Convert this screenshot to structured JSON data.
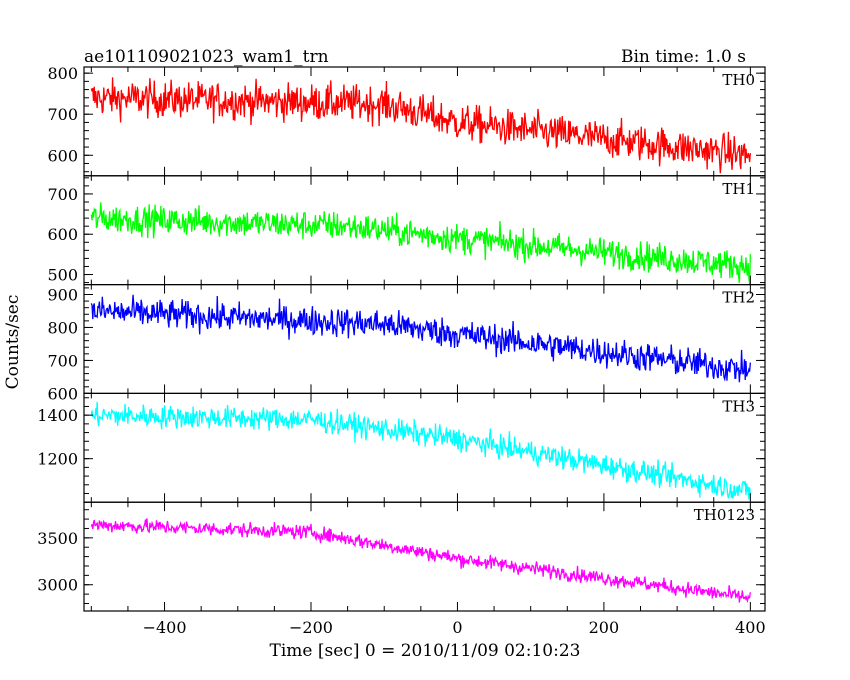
{
  "chart_data": {
    "type": "line",
    "title_left": "ae101109021023_wam1_trn",
    "title_right": "Bin time: 1.0 s",
    "xlabel": "Time [sec] 0 = 2010/11/09 02:10:23",
    "ylabel": "Counts/sec",
    "xlim": [
      -510,
      420
    ],
    "xticks": [
      -400,
      -200,
      0,
      200,
      400
    ],
    "panels": [
      {
        "name": "TH0",
        "color": "#ff0000",
        "ylim": [
          550,
          815
        ],
        "yticks": [
          600,
          700,
          800
        ],
        "trend": {
          "x": [
            -500,
            -100,
            0,
            400
          ],
          "y": [
            740,
            725,
            680,
            600
          ]
        },
        "noise": 32
      },
      {
        "name": "TH1",
        "color": "#00ff00",
        "ylim": [
          475,
          745
        ],
        "yticks": [
          500,
          600,
          700
        ],
        "trend": {
          "x": [
            -500,
            -150,
            0,
            400
          ],
          "y": [
            640,
            620,
            590,
            520
          ]
        },
        "noise": 26
      },
      {
        "name": "TH2",
        "color": "#0000ff",
        "ylim": [
          600,
          930
        ],
        "yticks": [
          600,
          700,
          800,
          900
        ],
        "trend": {
          "x": [
            -500,
            -100,
            0,
            400
          ],
          "y": [
            850,
            810,
            780,
            670
          ]
        },
        "noise": 32
      },
      {
        "name": "TH3",
        "color": "#00ffff",
        "ylim": [
          1000,
          1500
        ],
        "yticks": [
          1200,
          1400
        ],
        "trend": {
          "x": [
            -500,
            -200,
            0,
            400
          ],
          "y": [
            1400,
            1380,
            1290,
            1050
          ]
        },
        "noise": 38
      },
      {
        "name": "TH0123",
        "color": "#ff00ff",
        "ylim": [
          2720,
          3880
        ],
        "yticks": [
          3000,
          3500
        ],
        "trend": {
          "x": [
            -500,
            -200,
            0,
            400
          ],
          "y": [
            3640,
            3560,
            3280,
            2860
          ]
        },
        "noise": 55
      }
    ]
  }
}
